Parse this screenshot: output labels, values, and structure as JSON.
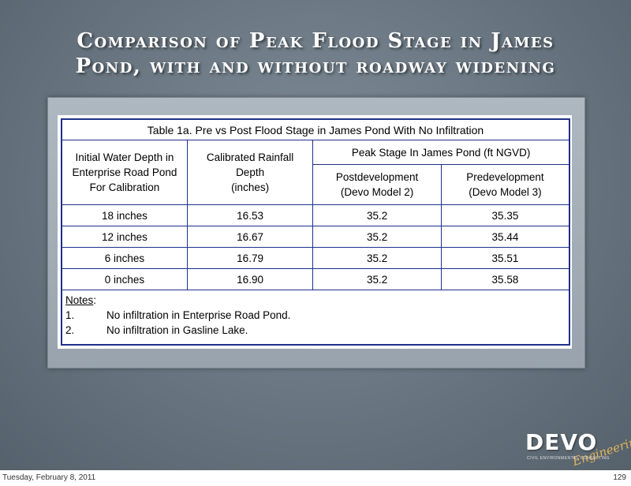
{
  "title": {
    "line1": "Comparison of Peak Flood Stage in James",
    "line2": "Pond, with and without roadway widening"
  },
  "table": {
    "caption": "Table 1a.  Pre vs Post Flood Stage in James Pond With No Infiltration",
    "col1": [
      "Initial Water Depth in",
      "Enterprise Road Pond",
      "For Calibration"
    ],
    "col2": [
      "Calibrated Rainfall",
      "Depth",
      "(inches)"
    ],
    "group_header": "Peak Stage In James Pond (ft NGVD)",
    "col3": [
      "Postdevelopment",
      "(Devo Model 2)"
    ],
    "col4": [
      "Predevelopment",
      "(Devo Model 3)"
    ],
    "rows": [
      [
        "18 inches",
        "16.53",
        "35.2",
        "35.35"
      ],
      [
        "12 inches",
        "16.67",
        "35.2",
        "35.44"
      ],
      [
        "6 inches",
        "16.79",
        "35.2",
        "35.51"
      ],
      [
        "0 inches",
        "16.90",
        "35.2",
        "35.58"
      ]
    ],
    "notes_title": "Notes",
    "notes_colon": ":",
    "notes": [
      {
        "num": "1.",
        "text": "No infiltration in Enterprise Road Pond."
      },
      {
        "num": "2.",
        "text": "No infiltration in Gasline Lake."
      }
    ]
  },
  "logo": {
    "name": "DEVO",
    "script": "Engineering",
    "tagline": "CIVIL ENVIRONMENTAL CONSULTING"
  },
  "footer": {
    "date": "Tuesday, February 8, 2011",
    "page": "129"
  }
}
